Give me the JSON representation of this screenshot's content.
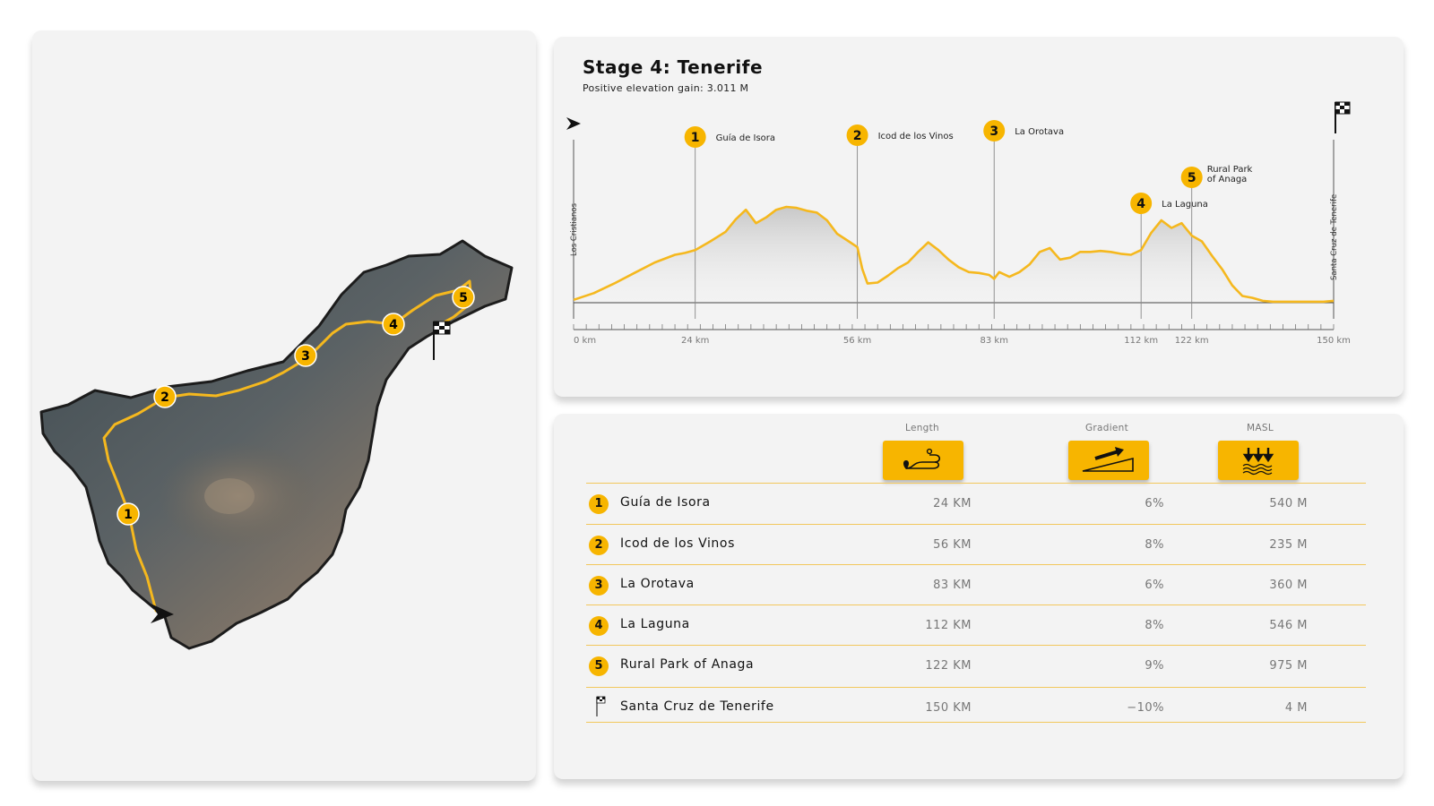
{
  "stage": {
    "title": "Stage 4: Tenerife",
    "subtitle": "Positive elevation gain: 3.011 M"
  },
  "colors": {
    "accent": "#f7b500",
    "route": "#f5b81e",
    "card": "#f3f3f3"
  },
  "map": {
    "icons": [
      "start-arrow-icon",
      "finish-flag-icon"
    ],
    "waypoints": [
      "1",
      "2",
      "3",
      "4",
      "5"
    ]
  },
  "chart_data": {
    "type": "area",
    "start_label": "Los Cristianos",
    "end_label": "Santa Cruz de Tenerife",
    "x_unit": "km",
    "xlim": [
      0,
      150
    ],
    "x_ticks": [
      "0 km",
      "24 km",
      "56 km",
      "83 km",
      "112 km",
      "122 km",
      "150 km"
    ],
    "x_tick_values": [
      0,
      24,
      56,
      83,
      112,
      122,
      150
    ],
    "profile": {
      "x": [
        0,
        4,
        8,
        12,
        16,
        20,
        22,
        24,
        27,
        30,
        32,
        34,
        36,
        38,
        40,
        42,
        44,
        46,
        48,
        50,
        52,
        54,
        56,
        57,
        58,
        60,
        62,
        64,
        66,
        68,
        70,
        72,
        74,
        76,
        78,
        80,
        82,
        83,
        84,
        86,
        88,
        90,
        92,
        94,
        96,
        98,
        100,
        102,
        104,
        106,
        108,
        110,
        112,
        114,
        116,
        118,
        120,
        122,
        124,
        126,
        128,
        130,
        132,
        134,
        136,
        138,
        140,
        142,
        144,
        146,
        148,
        150
      ],
      "y": [
        0.03,
        0.1,
        0.2,
        0.31,
        0.42,
        0.5,
        0.52,
        0.55,
        0.64,
        0.74,
        0.87,
        0.97,
        0.83,
        0.89,
        0.97,
        1.0,
        0.99,
        0.96,
        0.94,
        0.86,
        0.72,
        0.65,
        0.58,
        0.35,
        0.2,
        0.21,
        0.28,
        0.36,
        0.42,
        0.53,
        0.63,
        0.55,
        0.45,
        0.37,
        0.32,
        0.31,
        0.29,
        0.25,
        0.32,
        0.27,
        0.32,
        0.4,
        0.53,
        0.57,
        0.45,
        0.47,
        0.53,
        0.53,
        0.54,
        0.53,
        0.51,
        0.5,
        0.55,
        0.73,
        0.86,
        0.78,
        0.83,
        0.7,
        0.64,
        0.49,
        0.35,
        0.18,
        0.07,
        0.05,
        0.02,
        0.01,
        0.01,
        0.01,
        0.01,
        0.01,
        0.01,
        0.02
      ]
    },
    "waypoints": [
      {
        "num": "1",
        "name": "Guía de Isora",
        "km": 24
      },
      {
        "num": "2",
        "name": "Icod de los Vinos",
        "km": 56
      },
      {
        "num": "3",
        "name": "La Orotava",
        "km": 83
      },
      {
        "num": "4",
        "name": "La Laguna",
        "km": 112
      },
      {
        "num": "5",
        "name_line1": "Rural Park",
        "name_line2": "of Anaga",
        "km": 122
      }
    ]
  },
  "table": {
    "headers": {
      "length": "Length",
      "gradient": "Gradient",
      "masl": "MASL"
    },
    "header_icons": [
      "route-icon",
      "gradient-icon",
      "elevation-icon"
    ],
    "rows": [
      {
        "num": "1",
        "name": "Guía de Isora",
        "length": "24 KM",
        "gradient": "6%",
        "masl": "540 M"
      },
      {
        "num": "2",
        "name": "Icod de los Vinos",
        "length": "56 KM",
        "gradient": "8%",
        "masl": "235 M"
      },
      {
        "num": "3",
        "name": "La Orotava",
        "length": "83 KM",
        "gradient": "6%",
        "masl": "360 M"
      },
      {
        "num": "4",
        "name": "La Laguna",
        "length": "112 KM",
        "gradient": "8%",
        "masl": "546 M"
      },
      {
        "num": "5",
        "name": "Rural Park of Anaga",
        "length": "122 KM",
        "gradient": "9%",
        "masl": "975 M"
      },
      {
        "num": "",
        "name": "Santa Cruz de Tenerife",
        "length": "150 KM",
        "gradient": "−10%",
        "masl": "4 M"
      }
    ]
  }
}
